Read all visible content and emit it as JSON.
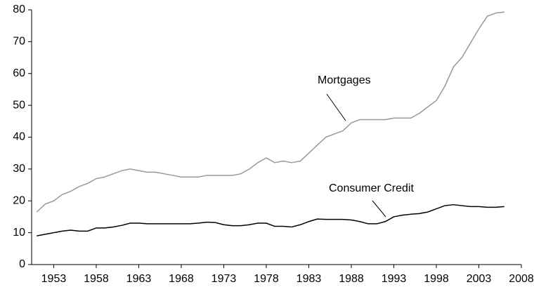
{
  "chart_data": {
    "type": "line",
    "annotations": [
      "Mortgages",
      "Consumer Credit"
    ],
    "x": [
      1951,
      1952,
      1953,
      1954,
      1955,
      1956,
      1957,
      1958,
      1959,
      1960,
      1961,
      1962,
      1963,
      1964,
      1965,
      1966,
      1967,
      1968,
      1969,
      1970,
      1971,
      1972,
      1973,
      1974,
      1975,
      1976,
      1977,
      1978,
      1979,
      1980,
      1981,
      1982,
      1983,
      1984,
      1985,
      1986,
      1987,
      1988,
      1989,
      1990,
      1991,
      1992,
      1993,
      1994,
      1995,
      1996,
      1997,
      1998,
      1999,
      2000,
      2001,
      2002,
      2003,
      2004,
      2005,
      2006
    ],
    "series": [
      {
        "name": "Mortgages",
        "color": "#999999",
        "values": [
          16.5,
          19,
          20,
          22,
          23,
          24.5,
          25.5,
          27,
          27.5,
          28.5,
          29.5,
          30,
          29.5,
          29,
          29,
          28.5,
          28,
          27.5,
          27.5,
          27.5,
          28,
          28,
          28,
          28,
          28.5,
          30,
          32,
          33.5,
          32,
          32.5,
          32,
          32.5,
          35,
          37.5,
          40,
          41,
          42,
          44.5,
          45.5,
          45.5,
          45.5,
          45.5,
          46,
          46,
          46,
          47.5,
          49.5,
          51.5,
          56,
          62,
          65,
          69.5,
          74,
          78,
          79,
          79.3
        ]
      },
      {
        "name": "Consumer Credit",
        "color": "#000000",
        "values": [
          9,
          9.5,
          10,
          10.5,
          10.8,
          10.5,
          10.5,
          11.5,
          11.5,
          11.8,
          12.3,
          13,
          13,
          12.8,
          12.8,
          12.8,
          12.8,
          12.8,
          12.8,
          13,
          13.3,
          13.2,
          12.5,
          12.2,
          12.2,
          12.5,
          13,
          13,
          12,
          12,
          11.8,
          12.5,
          13.5,
          14.3,
          14.2,
          14.2,
          14.2,
          14,
          13.5,
          12.8,
          12.8,
          13.5,
          15,
          15.5,
          15.8,
          16,
          16.5,
          17.5,
          18.5,
          18.8,
          18.5,
          18.2,
          18.2,
          18,
          18,
          18.2
        ]
      }
    ],
    "xlim": [
      1950.4,
      2008
    ],
    "xticks": [
      1953,
      1958,
      1963,
      1968,
      1973,
      1978,
      1983,
      1988,
      1993,
      1998,
      2003,
      2008
    ],
    "ylim": [
      0,
      80
    ],
    "yticks": [
      0,
      10,
      20,
      30,
      40,
      50,
      60,
      70,
      80
    ],
    "grid": false
  }
}
